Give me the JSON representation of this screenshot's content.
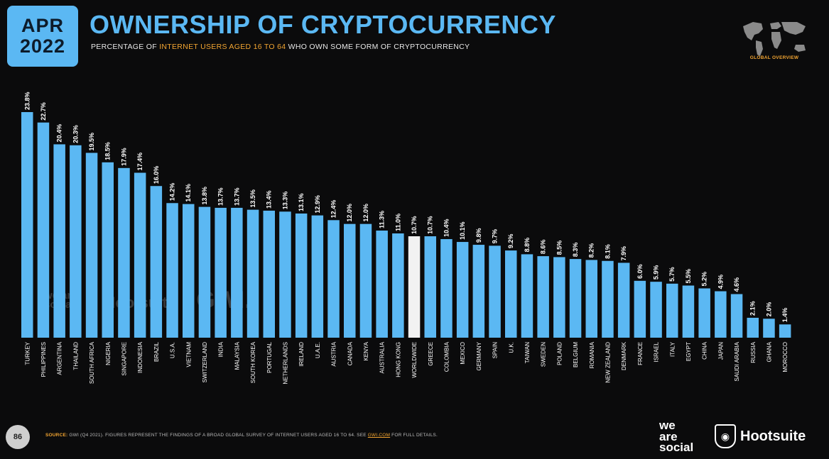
{
  "header": {
    "month": "APR",
    "year": "2022",
    "title": "OWNERSHIP OF CRYPTOCURRENCY",
    "subtitle_pre": "PERCENTAGE OF ",
    "subtitle_highlight": "INTERNET USERS AGED 16 TO 64",
    "subtitle_post": " WHO OWN SOME FORM OF CRYPTOCURRENCY",
    "global_label": "GLOBAL OVERVIEW"
  },
  "footer": {
    "page_number": "86",
    "source_label": "SOURCE:",
    "source_text": "GWI (Q4 2021). FIGURES REPRESENT THE FINDINGS OF A BROAD GLOBAL SURVEY OF INTERNET USERS AGED 16 TO 64. SEE ",
    "source_link": "GWI.COM",
    "source_tail": " FOR FULL DETAILS.",
    "logo_we": "we",
    "logo_are": "are",
    "logo_social": "social",
    "logo_hootsuite": "Hootsuite"
  },
  "watermark": {
    "we_are_social": "we are social",
    "hootsuite": "Hootsuite",
    "gwi": "GWI."
  },
  "colors": {
    "bar": "#5bb8f3",
    "highlight_bar": "#f2f2f2",
    "accent": "#f3a531",
    "background": "#0b0b0c"
  },
  "chart_data": {
    "type": "bar",
    "value_suffix": "%",
    "highlight_category": "WORLDWIDE",
    "categories": [
      "TURKEY",
      "PHILIPPINES",
      "ARGENTINA",
      "THAILAND",
      "SOUTH AFRICA",
      "NIGERIA",
      "SINGAPORE",
      "INDONESIA",
      "BRAZIL",
      "U.S.A.",
      "VIETNAM",
      "SWITZERLAND",
      "INDIA",
      "MALAYSIA",
      "SOUTH KOREA",
      "PORTUGAL",
      "NETHERLANDS",
      "IRELAND",
      "U.A.E.",
      "AUSTRIA",
      "CANADA",
      "KENYA",
      "AUSTRALIA",
      "HONG KONG",
      "WORLDWIDE",
      "GREECE",
      "COLOMBIA",
      "MEXICO",
      "GERMANY",
      "SPAIN",
      "U.K.",
      "TAIWAN",
      "SWEDEN",
      "POLAND",
      "BELGIUM",
      "ROMANIA",
      "NEW ZEALAND",
      "DENMARK",
      "FRANCE",
      "ISRAEL",
      "ITALY",
      "EGYPT",
      "CHINA",
      "JAPAN",
      "SAUDI ARABIA",
      "RUSSIA",
      "GHANA",
      "MOROCCO"
    ],
    "values": [
      23.8,
      22.7,
      20.4,
      20.3,
      19.5,
      18.5,
      17.9,
      17.4,
      16.0,
      14.2,
      14.1,
      13.8,
      13.7,
      13.7,
      13.5,
      13.4,
      13.3,
      13.1,
      12.9,
      12.4,
      12.0,
      12.0,
      11.3,
      11.0,
      10.7,
      10.7,
      10.4,
      10.1,
      9.8,
      9.7,
      9.2,
      8.8,
      8.6,
      8.5,
      8.3,
      8.2,
      8.1,
      7.9,
      6.0,
      5.9,
      5.7,
      5.5,
      5.2,
      4.9,
      4.6,
      2.1,
      2.0,
      1.4
    ]
  }
}
